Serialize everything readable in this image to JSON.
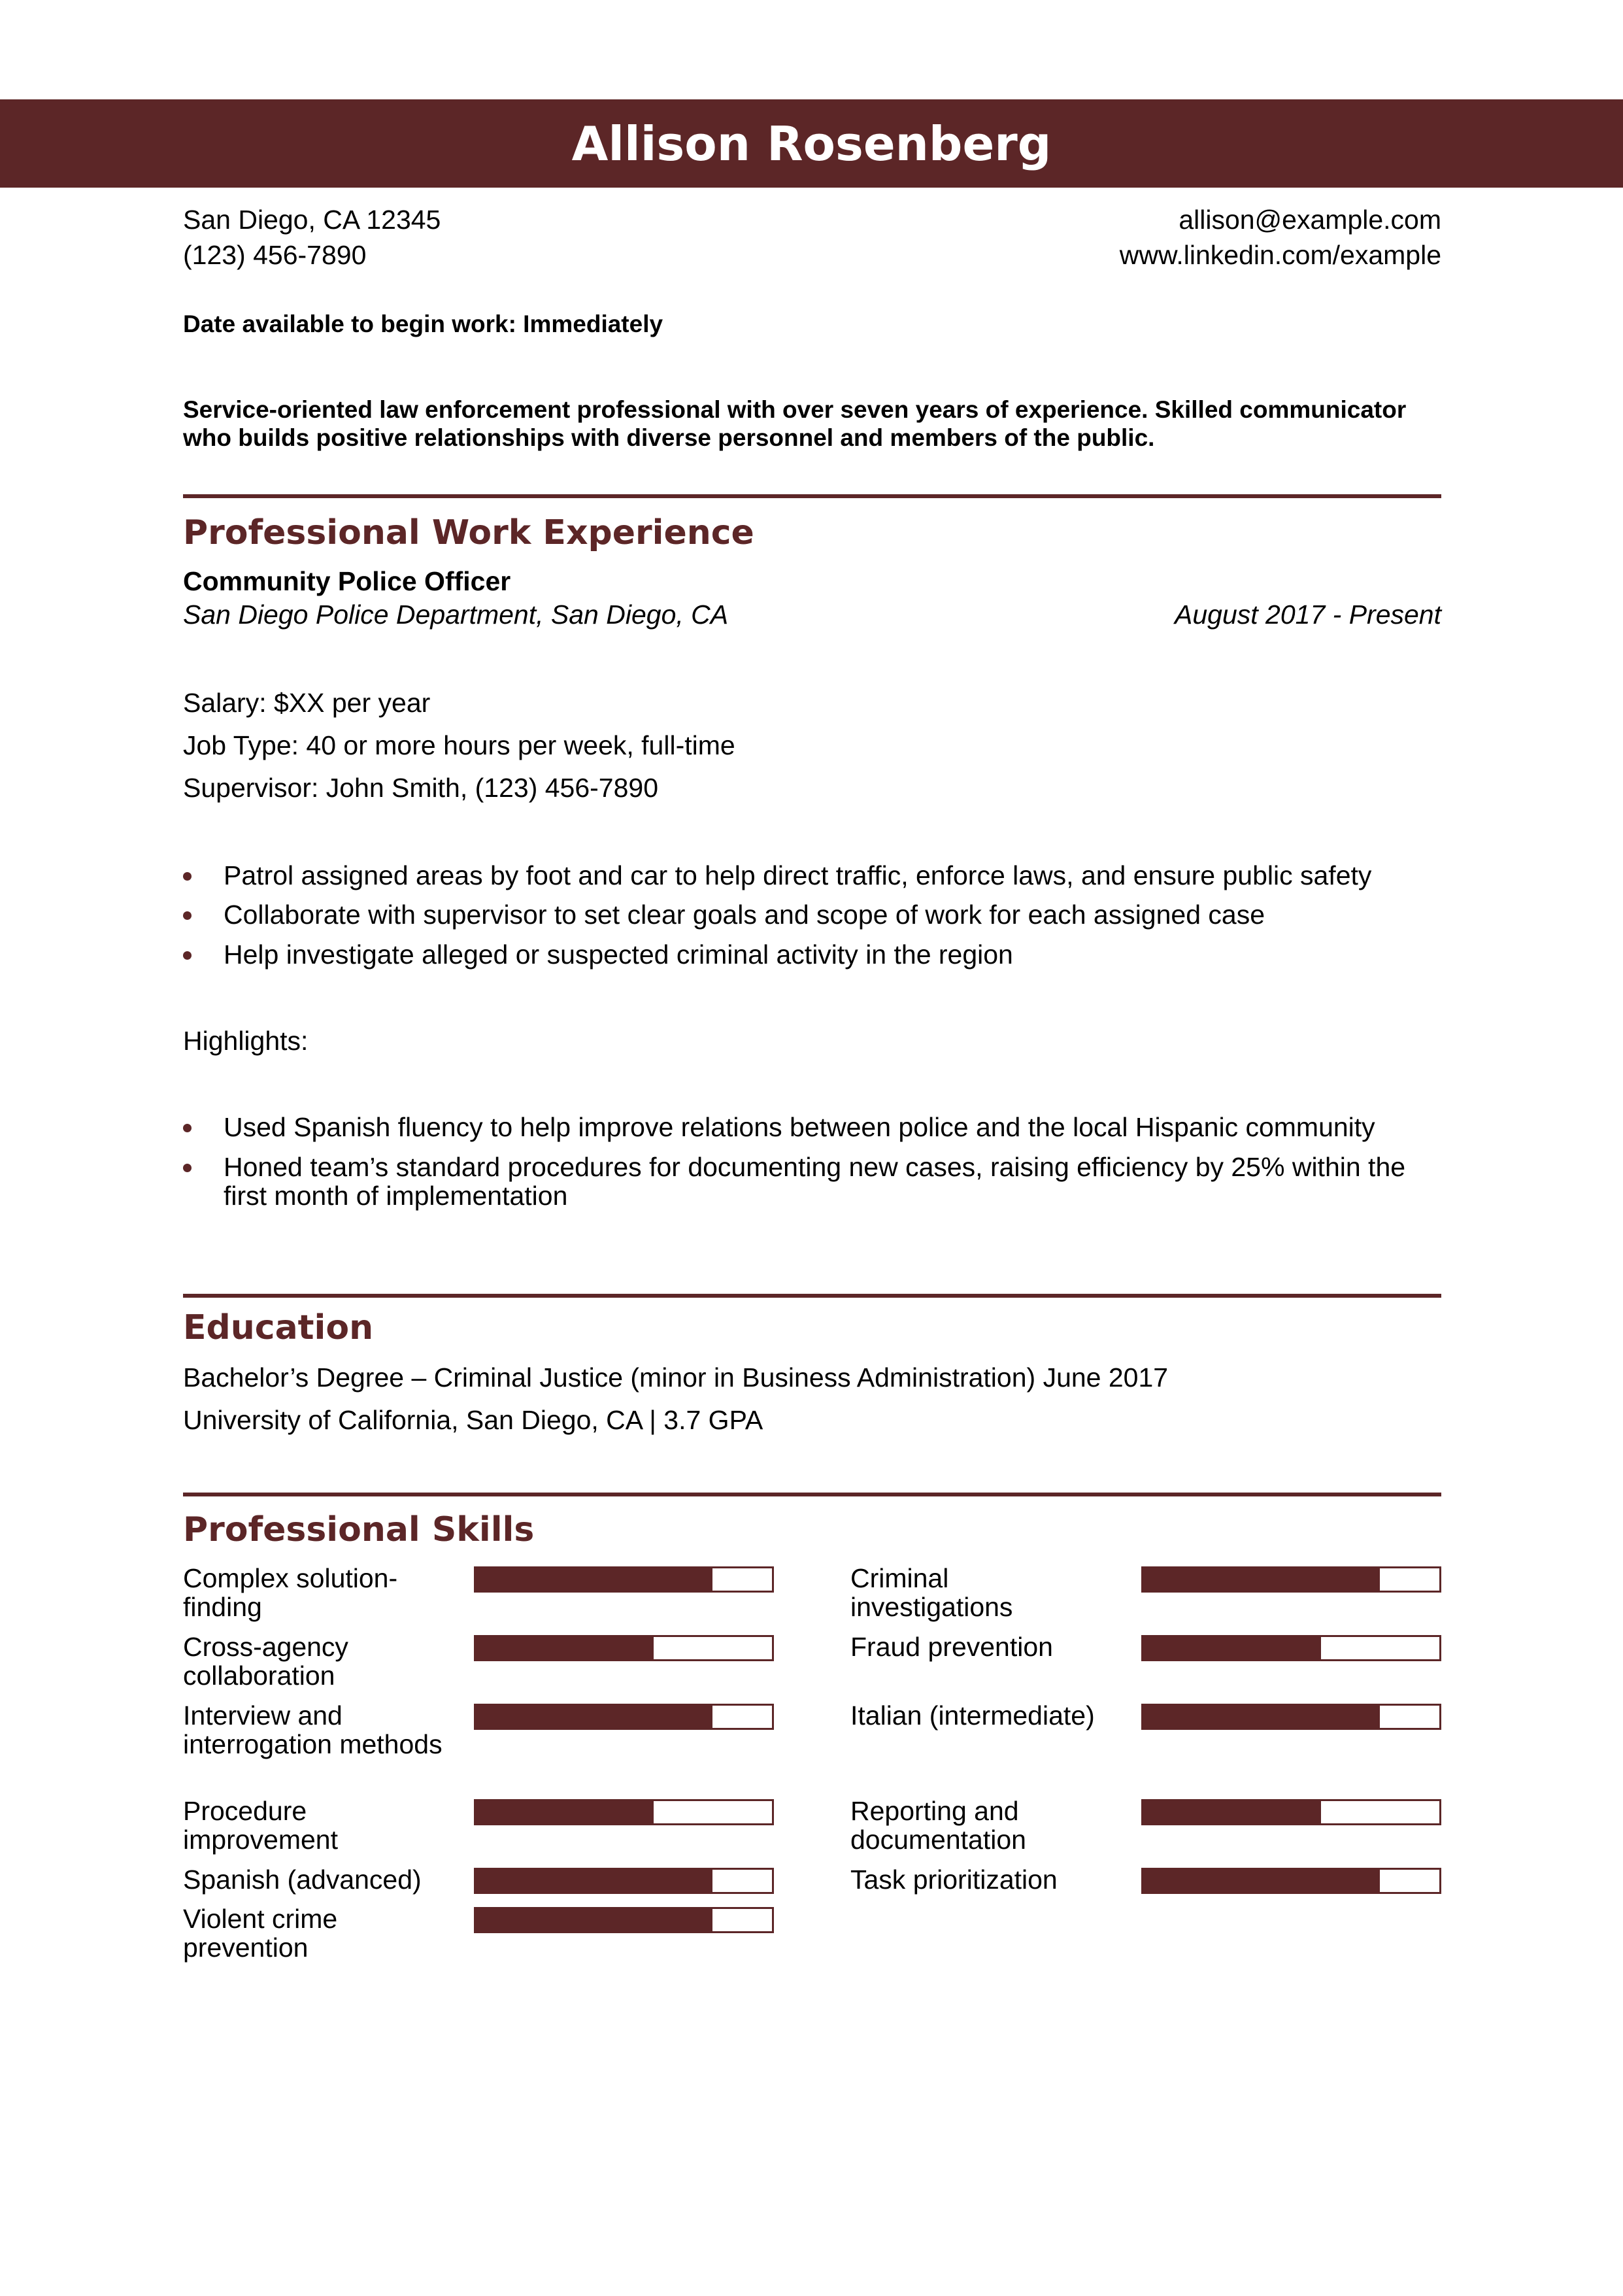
{
  "header": {
    "name": "Allison Rosenberg"
  },
  "contact": {
    "address": "San Diego, CA 12345",
    "phone": "(123) 456-7890",
    "email": "allison@example.com",
    "linkedin": "www.linkedin.com/example"
  },
  "availability": "Date available to begin work: Immediately",
  "summary": "Service-oriented law enforcement professional with over seven years of experience. Skilled communicator who builds positive relationships with diverse personnel and members of the public.",
  "experience": {
    "heading": "Professional Work Experience",
    "title": "Community Police Officer",
    "employer": "San Diego Police Department, San Diego, CA",
    "dates": "August 2017 - Present",
    "salary": "Salary: $XX per year",
    "job_type": "Job Type: 40 or more hours per week, full-time",
    "supervisor": "Supervisor: John Smith, (123) 456-7890",
    "bullets": [
      "Patrol assigned areas by foot and car to help direct traffic, enforce laws, and ensure public safety",
      "Collaborate with supervisor to set clear goals and scope of work for each assigned case",
      "Help investigate alleged or suspected criminal activity in the region"
    ],
    "highlights_label": "Highlights:",
    "highlights": [
      "Used Spanish fluency to help improve relations between police and the local Hispanic community",
      "Honed team’s standard procedures for documenting new cases, raising efficiency by 25% within the first month of implementation"
    ]
  },
  "education": {
    "heading": "Education",
    "degree": "Bachelor’s Degree – Criminal Justice (minor in Business Administration) June 2017",
    "school": "University of California, San Diego, CA | 3.7 GPA"
  },
  "skills": {
    "heading": "Professional Skills",
    "accent_color": "#5c2627",
    "left": [
      {
        "label": "Complex solution-finding",
        "level": 0.8
      },
      {
        "label": "Cross-agency collaboration",
        "level": 0.6
      },
      {
        "label": "Interview and interrogation methods",
        "level": 0.8
      },
      {
        "label": "Procedure improvement",
        "level": 0.6
      },
      {
        "label": "Spanish (advanced)",
        "level": 0.8
      },
      {
        "label": "Violent crime prevention",
        "level": 0.8
      }
    ],
    "right": [
      {
        "label": "Criminal investigations",
        "level": 0.8
      },
      {
        "label": "Fraud prevention",
        "level": 0.6
      },
      {
        "label": "Italian (intermediate)",
        "level": 0.8
      },
      {
        "label": "Reporting and documentation",
        "level": 0.6
      },
      {
        "label": "Task prioritization",
        "level": 0.8
      }
    ]
  }
}
